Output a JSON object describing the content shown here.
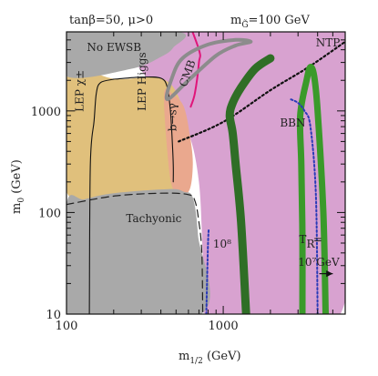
{
  "chart_data": {
    "type": "area",
    "header_left": "tanβ=50, μ>0",
    "header_right": "m_g̃=100 GeV",
    "header_right_main": "m",
    "header_right_sub": "G̃",
    "header_right_rest": "=100 GeV",
    "xlabel": "m",
    "xlabel_sub": "1/2",
    "xlabel_rest": " (GeV)",
    "ylabel": "m",
    "ylabel_sub": "0",
    "ylabel_rest": " (GeV)",
    "x_scale": "log",
    "y_scale": "log",
    "xlim": [
      100,
      6000
    ],
    "ylim": [
      10,
      6000
    ],
    "x_ticks": [
      {
        "value": 100,
        "label": "100"
      },
      {
        "value": 1000,
        "label": "1000"
      }
    ],
    "y_ticks": [
      {
        "value": 10,
        "label": "10"
      },
      {
        "value": 100,
        "label": "100"
      },
      {
        "value": 1000,
        "label": "1000"
      }
    ],
    "regions": [
      {
        "id": "bbn",
        "label": "BBN",
        "color": "#d8a2d0",
        "polygon": [
          [
            185,
            6000
          ],
          [
            6000,
            6000
          ],
          [
            6000,
            4700
          ],
          [
            5600,
            10
          ],
          [
            780,
            10
          ],
          [
            740,
            40
          ],
          [
            700,
            200
          ],
          [
            600,
            600
          ],
          [
            450,
            1000
          ],
          [
            300,
            2500
          ],
          [
            185,
            6000
          ]
        ],
        "label_at": [
          2300,
          700
        ]
      },
      {
        "id": "lep-higgs",
        "label": "LEP Higgs",
        "color": "#e0c07c",
        "polygon": [
          [
            100,
            2100
          ],
          [
            210,
            2050
          ],
          [
            460,
            1850
          ],
          [
            620,
            400
          ],
          [
            520,
            160
          ],
          [
            300,
            150
          ],
          [
            200,
            150
          ],
          [
            100,
            160
          ]
        ],
        "label_at": [
          320,
          1000
        ]
      },
      {
        "id": "bsgamma",
        "label": "b→sγ",
        "color": "#eaa88e",
        "polygon": [
          [
            420,
            1500
          ],
          [
            480,
            1450
          ],
          [
            560,
            1100
          ],
          [
            610,
            600
          ],
          [
            640,
            300
          ],
          [
            600,
            160
          ],
          [
            480,
            170
          ],
          [
            440,
            400
          ]
        ],
        "label_at": [
          500,
          630
        ]
      },
      {
        "id": "no-ewsb",
        "label": "No EWSB",
        "color": "#a9a9a9",
        "polygon": [
          [
            100,
            6000
          ],
          [
            520,
            6000
          ],
          [
            480,
            4200
          ],
          [
            400,
            3400
          ],
          [
            260,
            2600
          ],
          [
            100,
            2200
          ]
        ],
        "label_at": [
          135,
          3900
        ]
      },
      {
        "id": "tachyonic",
        "label": "Tachyonic",
        "color": "#a9a9a9",
        "polygon": [
          [
            100,
            10
          ],
          [
            720,
            10
          ],
          [
            690,
            60
          ],
          [
            640,
            140
          ],
          [
            560,
            160
          ],
          [
            450,
            170
          ],
          [
            200,
            155
          ],
          [
            130,
            135
          ],
          [
            100,
            120
          ]
        ],
        "label_at": [
          240,
          80
        ]
      }
    ],
    "curves": [
      {
        "id": "lep-chargino",
        "label": "LEP χ±",
        "color": "#111111",
        "width": 1.1,
        "dash": "",
        "points": [
          [
            140,
            10
          ],
          [
            142,
            300
          ],
          [
            150,
            800
          ],
          [
            155,
            1500
          ],
          [
            165,
            1900
          ],
          [
            200,
            2050
          ]
        ],
        "label_at": [
          128,
          980
        ]
      },
      {
        "id": "lep-higgs-boundary",
        "label": "",
        "color": "#111111",
        "width": 1.1,
        "dash": "",
        "points": [
          [
            200,
            2050
          ],
          [
            300,
            2150
          ],
          [
            400,
            2100
          ],
          [
            440,
            1700
          ],
          [
            460,
            1000
          ],
          [
            470,
            600
          ],
          [
            480,
            300
          ],
          [
            480,
            200
          ]
        ]
      },
      {
        "id": "cmb-pink",
        "label": "CMB",
        "color": "#e0157a",
        "width": 2,
        "dash": "",
        "points": [
          [
            560,
            10000
          ],
          [
            700,
            4000
          ],
          [
            700,
            3000
          ],
          [
            660,
            1500
          ],
          [
            620,
            1100
          ]
        ],
        "label_at": [
          580,
          1700
        ]
      },
      {
        "id": "cmb-gray-loop",
        "label": "",
        "color": "#8c8c8c",
        "width": 4,
        "dash": "",
        "closed": true,
        "points": [
          [
            440,
            1300
          ],
          [
            600,
            2000
          ],
          [
            900,
            3500
          ],
          [
            1200,
            4400
          ],
          [
            1500,
            4800
          ],
          [
            1200,
            5000
          ],
          [
            800,
            4500
          ],
          [
            550,
            3300
          ],
          [
            470,
            2100
          ]
        ]
      },
      {
        "id": "tachyonic-dashed",
        "label": "",
        "color": "#222222",
        "width": 1.2,
        "dash": "8 5",
        "points": [
          [
            100,
            120
          ],
          [
            200,
            145
          ],
          [
            400,
            155
          ],
          [
            600,
            150
          ],
          [
            660,
            130
          ],
          [
            700,
            80
          ],
          [
            730,
            40
          ],
          [
            740,
            10
          ]
        ]
      },
      {
        "id": "ntp-line",
        "label": "NTP",
        "color": "#111111",
        "width": 2.2,
        "dash": "2 3",
        "points": [
          [
            520,
            500
          ],
          [
            1000,
            780
          ],
          [
            2000,
            1600
          ],
          [
            3500,
            2700
          ],
          [
            6000,
            4800
          ]
        ],
        "label_at": [
          3900,
          4300
        ]
      },
      {
        "id": "green-tr-1e7",
        "label": "",
        "color": "#3a9a2a",
        "width": 7,
        "dash": "",
        "points": [
          [
            4500,
            10
          ],
          [
            4350,
            100
          ],
          [
            4000,
            1000
          ],
          [
            3800,
            2200
          ],
          [
            3600,
            2700
          ],
          [
            3400,
            2000
          ],
          [
            3100,
            900
          ],
          [
            3150,
            300
          ],
          [
            3200,
            60
          ],
          [
            3200,
            10
          ]
        ]
      },
      {
        "id": "green-tr-1e8",
        "label": "",
        "color": "#2f6e26",
        "width": 9,
        "dash": "",
        "points": [
          [
            1400,
            10
          ],
          [
            1300,
            80
          ],
          [
            1200,
            300
          ],
          [
            1150,
            600
          ],
          [
            1100,
            900
          ],
          [
            1150,
            1200
          ],
          [
            1300,
            1700
          ],
          [
            1600,
            2600
          ],
          [
            2000,
            3300
          ]
        ]
      },
      {
        "id": "blue-1e8",
        "label": "10⁸",
        "color": "#2a3ab8",
        "width": 2,
        "dash": "2 2.5",
        "points": [
          [
            780,
            10
          ],
          [
            800,
            50
          ],
          [
            810,
            70
          ]
        ],
        "label_at": [
          860,
          45
        ]
      },
      {
        "id": "blue-tr",
        "label": "",
        "color": "#2a3ab8",
        "width": 2,
        "dash": "2 2.5",
        "points": [
          [
            4000,
            10
          ],
          [
            3900,
            150
          ],
          [
            3600,
            700
          ],
          [
            3300,
            1000
          ],
          [
            3000,
            1200
          ],
          [
            2700,
            1300
          ]
        ]
      }
    ],
    "annotations": [
      {
        "id": "tr-label-main",
        "text": "T",
        "x": 3050,
        "y": 50
      },
      {
        "id": "tr-label-sub",
        "text": "R",
        "x": 3400,
        "y": 45
      },
      {
        "id": "tr-label-eq",
        "text": "=",
        "x": 3750,
        "y": 50
      },
      {
        "id": "tr-value",
        "text": "10⁷GeV",
        "x": 3000,
        "y": 30
      }
    ],
    "arrow": {
      "from": [
        4100,
        25
      ],
      "to": [
        5000,
        25
      ]
    }
  }
}
